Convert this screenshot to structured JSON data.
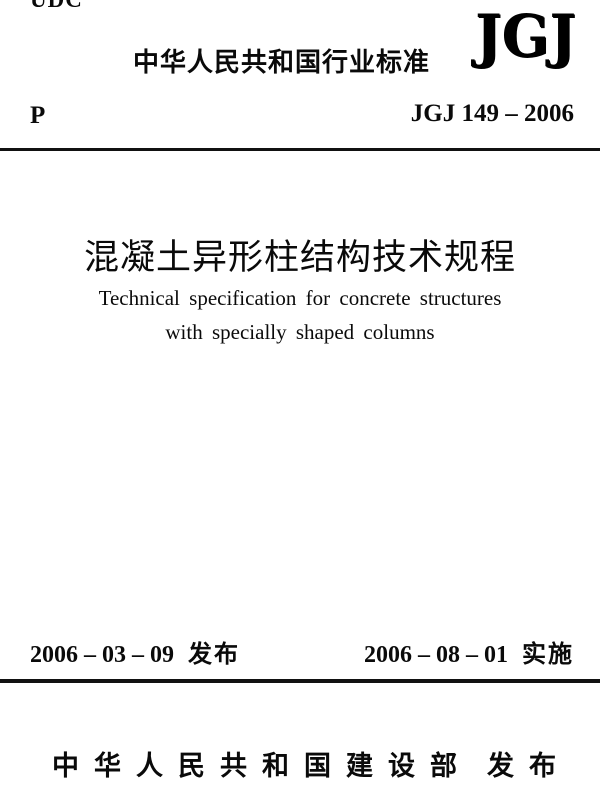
{
  "page": {
    "udc": "UDC",
    "header": {
      "standard_type": "中华人民共和国行业标准",
      "logo": "JGJ",
      "classification": "P",
      "standard_number": "JGJ 149 – 2006"
    },
    "title": {
      "chinese": "混凝土异形柱结构技术规程",
      "english_line1": "Technical specification for concrete structures",
      "english_line2": "with specially shaped columns"
    },
    "footer": {
      "issue_date": "2006 – 03 – 09",
      "issue_label": "发布",
      "effective_date": "2006 – 08 – 01",
      "effective_label": "实施",
      "publisher": "中华人民共和国建设部",
      "publish_label": "发布"
    }
  }
}
